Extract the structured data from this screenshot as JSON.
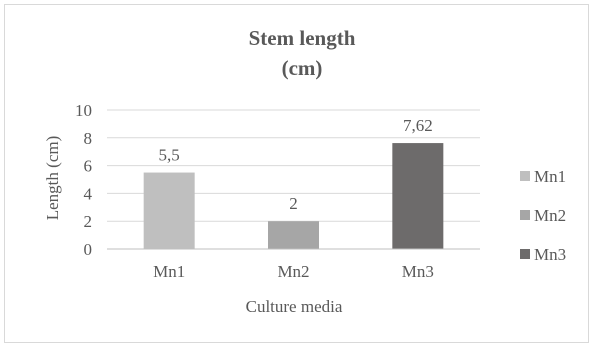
{
  "chart_data": {
    "type": "bar",
    "title": "Stem length",
    "subtitle": "(cm)",
    "xlabel": "Culture media",
    "ylabel": "Length (cm)",
    "categories": [
      "Mn1",
      "Mn2",
      "Mn3"
    ],
    "values": [
      5.5,
      2,
      7.62
    ],
    "data_labels": [
      "5,5",
      "2",
      "7,62"
    ],
    "ylim": [
      0,
      10
    ],
    "yticks": [
      "0",
      "2",
      "4",
      "6",
      "8",
      "10"
    ],
    "grid": true,
    "legend": {
      "position": "right",
      "entries": [
        "Mn1",
        "Mn2",
        "Mn3"
      ]
    },
    "colors": [
      "#bfbfbf",
      "#a6a6a6",
      "#6d6b6b"
    ]
  }
}
